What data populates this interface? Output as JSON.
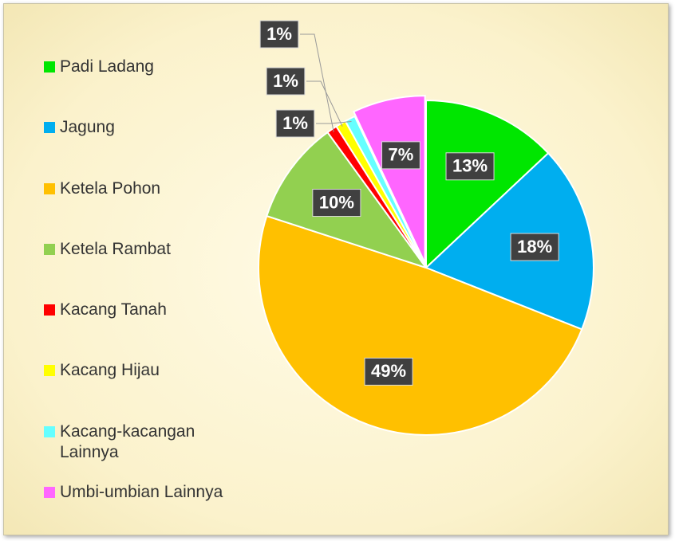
{
  "chart_data": {
    "type": "pie",
    "categories": [
      "Padi Ladang",
      "Jagung",
      "Ketela Pohon",
      "Ketela Rambat",
      "Kacang Tanah",
      "Kacang Hijau",
      "Kacang-kacangan Lainnya",
      "Umbi-umbian Lainnya"
    ],
    "values": [
      13,
      18,
      49,
      10,
      1,
      1,
      1,
      7
    ],
    "value_labels": [
      "13%",
      "18%",
      "49%",
      "10%",
      "1%",
      "1%",
      "1%",
      "7%"
    ],
    "colors": [
      "#00e600",
      "#00aeef",
      "#ffc000",
      "#92d050",
      "#ff0000",
      "#ffff00",
      "#66ffff",
      "#ff66ff"
    ],
    "legend": "left"
  }
}
